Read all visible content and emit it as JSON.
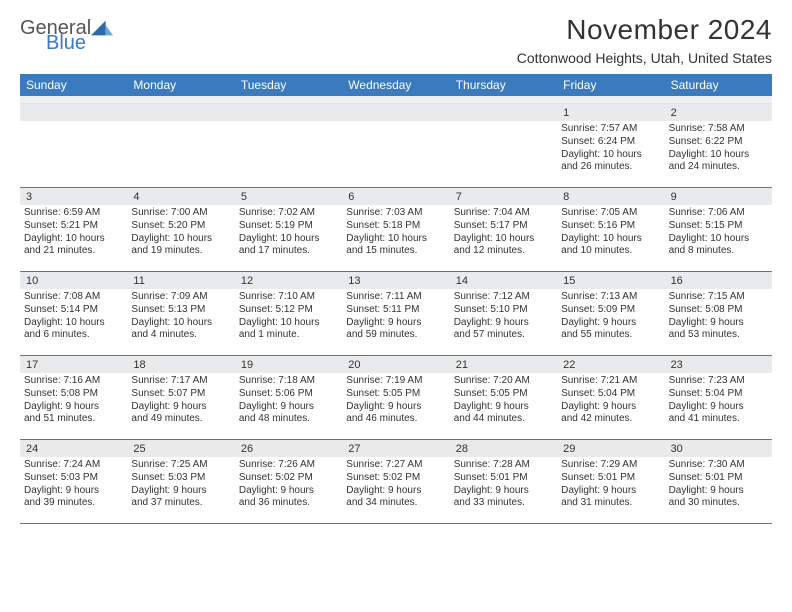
{
  "logo": {
    "general": "General",
    "blue": "Blue"
  },
  "title": "November 2024",
  "subtitle": "Cottonwood Heights, Utah, United States",
  "colors": {
    "brand_blue": "#3a7bbf",
    "header_bg": "#3a7bbf",
    "daynum_bg": "#e8eaec",
    "row_border": "#3a7bbf",
    "text": "#333333"
  },
  "days_of_week": [
    "Sunday",
    "Monday",
    "Tuesday",
    "Wednesday",
    "Thursday",
    "Friday",
    "Saturday"
  ],
  "weeks": [
    [
      null,
      null,
      null,
      null,
      null,
      {
        "n": "1",
        "l1": "Sunrise: 7:57 AM",
        "l2": "Sunset: 6:24 PM",
        "l3": "Daylight: 10 hours",
        "l4": "and 26 minutes."
      },
      {
        "n": "2",
        "l1": "Sunrise: 7:58 AM",
        "l2": "Sunset: 6:22 PM",
        "l3": "Daylight: 10 hours",
        "l4": "and 24 minutes."
      }
    ],
    [
      {
        "n": "3",
        "l1": "Sunrise: 6:59 AM",
        "l2": "Sunset: 5:21 PM",
        "l3": "Daylight: 10 hours",
        "l4": "and 21 minutes."
      },
      {
        "n": "4",
        "l1": "Sunrise: 7:00 AM",
        "l2": "Sunset: 5:20 PM",
        "l3": "Daylight: 10 hours",
        "l4": "and 19 minutes."
      },
      {
        "n": "5",
        "l1": "Sunrise: 7:02 AM",
        "l2": "Sunset: 5:19 PM",
        "l3": "Daylight: 10 hours",
        "l4": "and 17 minutes."
      },
      {
        "n": "6",
        "l1": "Sunrise: 7:03 AM",
        "l2": "Sunset: 5:18 PM",
        "l3": "Daylight: 10 hours",
        "l4": "and 15 minutes."
      },
      {
        "n": "7",
        "l1": "Sunrise: 7:04 AM",
        "l2": "Sunset: 5:17 PM",
        "l3": "Daylight: 10 hours",
        "l4": "and 12 minutes."
      },
      {
        "n": "8",
        "l1": "Sunrise: 7:05 AM",
        "l2": "Sunset: 5:16 PM",
        "l3": "Daylight: 10 hours",
        "l4": "and 10 minutes."
      },
      {
        "n": "9",
        "l1": "Sunrise: 7:06 AM",
        "l2": "Sunset: 5:15 PM",
        "l3": "Daylight: 10 hours",
        "l4": "and 8 minutes."
      }
    ],
    [
      {
        "n": "10",
        "l1": "Sunrise: 7:08 AM",
        "l2": "Sunset: 5:14 PM",
        "l3": "Daylight: 10 hours",
        "l4": "and 6 minutes."
      },
      {
        "n": "11",
        "l1": "Sunrise: 7:09 AM",
        "l2": "Sunset: 5:13 PM",
        "l3": "Daylight: 10 hours",
        "l4": "and 4 minutes."
      },
      {
        "n": "12",
        "l1": "Sunrise: 7:10 AM",
        "l2": "Sunset: 5:12 PM",
        "l3": "Daylight: 10 hours",
        "l4": "and 1 minute."
      },
      {
        "n": "13",
        "l1": "Sunrise: 7:11 AM",
        "l2": "Sunset: 5:11 PM",
        "l3": "Daylight: 9 hours",
        "l4": "and 59 minutes."
      },
      {
        "n": "14",
        "l1": "Sunrise: 7:12 AM",
        "l2": "Sunset: 5:10 PM",
        "l3": "Daylight: 9 hours",
        "l4": "and 57 minutes."
      },
      {
        "n": "15",
        "l1": "Sunrise: 7:13 AM",
        "l2": "Sunset: 5:09 PM",
        "l3": "Daylight: 9 hours",
        "l4": "and 55 minutes."
      },
      {
        "n": "16",
        "l1": "Sunrise: 7:15 AM",
        "l2": "Sunset: 5:08 PM",
        "l3": "Daylight: 9 hours",
        "l4": "and 53 minutes."
      }
    ],
    [
      {
        "n": "17",
        "l1": "Sunrise: 7:16 AM",
        "l2": "Sunset: 5:08 PM",
        "l3": "Daylight: 9 hours",
        "l4": "and 51 minutes."
      },
      {
        "n": "18",
        "l1": "Sunrise: 7:17 AM",
        "l2": "Sunset: 5:07 PM",
        "l3": "Daylight: 9 hours",
        "l4": "and 49 minutes."
      },
      {
        "n": "19",
        "l1": "Sunrise: 7:18 AM",
        "l2": "Sunset: 5:06 PM",
        "l3": "Daylight: 9 hours",
        "l4": "and 48 minutes."
      },
      {
        "n": "20",
        "l1": "Sunrise: 7:19 AM",
        "l2": "Sunset: 5:05 PM",
        "l3": "Daylight: 9 hours",
        "l4": "and 46 minutes."
      },
      {
        "n": "21",
        "l1": "Sunrise: 7:20 AM",
        "l2": "Sunset: 5:05 PM",
        "l3": "Daylight: 9 hours",
        "l4": "and 44 minutes."
      },
      {
        "n": "22",
        "l1": "Sunrise: 7:21 AM",
        "l2": "Sunset: 5:04 PM",
        "l3": "Daylight: 9 hours",
        "l4": "and 42 minutes."
      },
      {
        "n": "23",
        "l1": "Sunrise: 7:23 AM",
        "l2": "Sunset: 5:04 PM",
        "l3": "Daylight: 9 hours",
        "l4": "and 41 minutes."
      }
    ],
    [
      {
        "n": "24",
        "l1": "Sunrise: 7:24 AM",
        "l2": "Sunset: 5:03 PM",
        "l3": "Daylight: 9 hours",
        "l4": "and 39 minutes."
      },
      {
        "n": "25",
        "l1": "Sunrise: 7:25 AM",
        "l2": "Sunset: 5:03 PM",
        "l3": "Daylight: 9 hours",
        "l4": "and 37 minutes."
      },
      {
        "n": "26",
        "l1": "Sunrise: 7:26 AM",
        "l2": "Sunset: 5:02 PM",
        "l3": "Daylight: 9 hours",
        "l4": "and 36 minutes."
      },
      {
        "n": "27",
        "l1": "Sunrise: 7:27 AM",
        "l2": "Sunset: 5:02 PM",
        "l3": "Daylight: 9 hours",
        "l4": "and 34 minutes."
      },
      {
        "n": "28",
        "l1": "Sunrise: 7:28 AM",
        "l2": "Sunset: 5:01 PM",
        "l3": "Daylight: 9 hours",
        "l4": "and 33 minutes."
      },
      {
        "n": "29",
        "l1": "Sunrise: 7:29 AM",
        "l2": "Sunset: 5:01 PM",
        "l3": "Daylight: 9 hours",
        "l4": "and 31 minutes."
      },
      {
        "n": "30",
        "l1": "Sunrise: 7:30 AM",
        "l2": "Sunset: 5:01 PM",
        "l3": "Daylight: 9 hours",
        "l4": "and 30 minutes."
      }
    ]
  ]
}
